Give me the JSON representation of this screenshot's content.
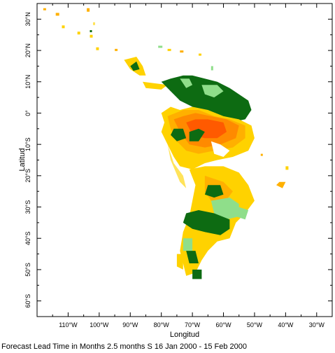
{
  "map": {
    "x_axis_title": "Longitud",
    "y_axis_title": "Latitud",
    "caption": "Forecast Lead Time in Months 2.5 months S 16 Jan 2000 - 15 Feb 2000",
    "lon_range": [
      -120,
      -25
    ],
    "lat_range": [
      -65,
      35
    ],
    "lon_ticks": [
      {
        "value": -110,
        "label": "110°W"
      },
      {
        "value": -100,
        "label": "100°W"
      },
      {
        "value": -90,
        "label": "90°W"
      },
      {
        "value": -80,
        "label": "80°W"
      },
      {
        "value": -70,
        "label": "70°W"
      },
      {
        "value": -60,
        "label": "60°W"
      },
      {
        "value": -50,
        "label": "50°W"
      },
      {
        "value": -40,
        "label": "40°W"
      },
      {
        "value": -30,
        "label": "30°W"
      }
    ],
    "lat_ticks": [
      {
        "value": 30,
        "label": "30°N"
      },
      {
        "value": 20,
        "label": "20°N"
      },
      {
        "value": 10,
        "label": "10°N"
      },
      {
        "value": 0,
        "label": "0°"
      },
      {
        "value": -10,
        "label": "10°S"
      },
      {
        "value": -20,
        "label": "20°S"
      },
      {
        "value": -30,
        "label": "30°S"
      },
      {
        "value": -40,
        "label": "40°S"
      },
      {
        "value": -50,
        "label": "50°S"
      },
      {
        "value": -60,
        "label": "60°S"
      }
    ],
    "colors": {
      "dark_green": "#0d6b12",
      "light_green": "#8fde8a",
      "yellow": "#ffd200",
      "light_orange": "#ffb000",
      "orange": "#ff8a00",
      "deep_orange": "#ff5a00",
      "pale_yellow": "#ffe35a",
      "gray": "#8a8a8a"
    }
  }
}
